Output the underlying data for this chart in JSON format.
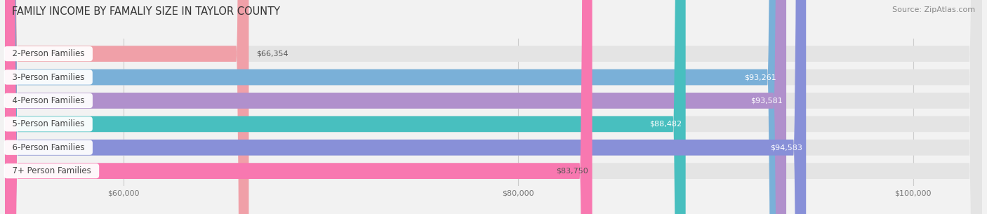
{
  "title": "FAMILY INCOME BY FAMALIY SIZE IN TAYLOR COUNTY",
  "source": "Source: ZipAtlas.com",
  "categories": [
    "2-Person Families",
    "3-Person Families",
    "4-Person Families",
    "5-Person Families",
    "6-Person Families",
    "7+ Person Families"
  ],
  "values": [
    66354,
    93261,
    93581,
    88482,
    94583,
    83750
  ],
  "bar_colors": [
    "#f0a0a8",
    "#7ab0d8",
    "#b090cc",
    "#48bfbf",
    "#8890d8",
    "#f878b0"
  ],
  "value_label_colors": [
    "#555555",
    "#ffffff",
    "#ffffff",
    "#ffffff",
    "#ffffff",
    "#555555"
  ],
  "xlim_min": 54000,
  "xlim_max": 103500,
  "xticks": [
    60000,
    80000,
    100000
  ],
  "xtick_labels": [
    "$60,000",
    "$80,000",
    "$100,000"
  ],
  "background_color": "#f2f2f2",
  "bar_bg_color": "#e4e4e4",
  "title_fontsize": 10.5,
  "source_fontsize": 8,
  "label_fontsize": 8.5,
  "value_fontsize": 8
}
